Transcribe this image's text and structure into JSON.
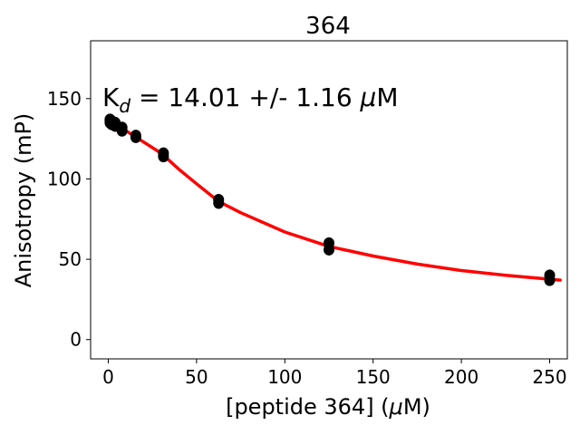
{
  "chart_data": {
    "type": "scatter",
    "title": "364",
    "xlabel_prefix": "[peptide 364] (",
    "xlabel_mu": "μ",
    "xlabel_suffix": "M)",
    "ylabel": "Anisotropy (mP)",
    "annotation": {
      "k": "K",
      "sub": "d",
      "rest": " = 14.01 +/- 1.16 ",
      "mu": "μ",
      "unit": "M"
    },
    "xlim": [
      -10,
      260
    ],
    "ylim": [
      -12,
      186
    ],
    "xticks": [
      0,
      50,
      100,
      150,
      200,
      250
    ],
    "yticks": [
      0,
      50,
      100,
      150
    ],
    "series": [
      {
        "kind": "points",
        "color": "#000000",
        "points": [
          [
            0.98,
            137
          ],
          [
            0.98,
            135
          ],
          [
            0.98,
            136
          ],
          [
            1.95,
            136
          ],
          [
            1.95,
            134
          ],
          [
            3.9,
            135
          ],
          [
            3.9,
            133
          ],
          [
            7.8,
            132
          ],
          [
            7.8,
            130
          ],
          [
            15.6,
            127
          ],
          [
            15.6,
            126
          ],
          [
            31.25,
            116
          ],
          [
            31.25,
            114
          ],
          [
            62.5,
            87
          ],
          [
            62.5,
            85
          ],
          [
            125,
            60
          ],
          [
            125,
            56
          ],
          [
            250,
            40
          ],
          [
            250,
            37
          ]
        ]
      },
      {
        "kind": "fit",
        "color": "#ff0000",
        "points": [
          [
            0,
            137
          ],
          [
            10,
            130
          ],
          [
            20,
            123
          ],
          [
            30,
            116
          ],
          [
            40,
            106
          ],
          [
            50,
            97
          ],
          [
            62.5,
            86
          ],
          [
            75,
            79
          ],
          [
            100,
            67
          ],
          [
            125,
            58
          ],
          [
            150,
            52
          ],
          [
            175,
            47
          ],
          [
            200,
            43
          ],
          [
            225,
            40
          ],
          [
            256,
            37
          ]
        ]
      }
    ]
  }
}
